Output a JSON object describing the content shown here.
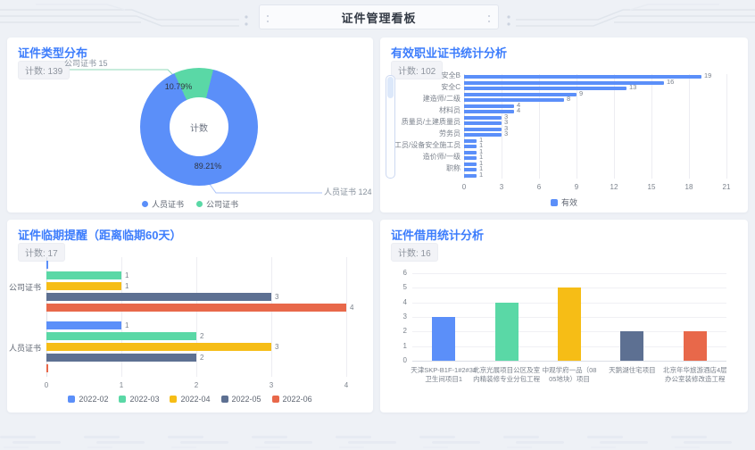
{
  "header": {
    "title": "证件管理看板"
  },
  "panels": {
    "pie": {
      "title": "证件类型分布",
      "badge": "计数: 139"
    },
    "valid": {
      "title": "有效职业证书统计分析",
      "badge": "计数: 102"
    },
    "expiry": {
      "title": "证件临期提醒（距离临期60天）",
      "badge": "计数: 17"
    },
    "borrow": {
      "title": "证件借用统计分析",
      "badge": "计数: 16"
    }
  },
  "chart_data": [
    {
      "id": "cert-type-pie",
      "type": "pie",
      "title": "证件类型分布",
      "center_label": "计数",
      "slices": [
        {
          "name": "人员证书",
          "value": 124,
          "pct": "89.21%",
          "color": "#5B8FF9"
        },
        {
          "name": "公司证书",
          "value": 15,
          "pct": "10.79%",
          "color": "#5AD8A6"
        }
      ],
      "legend": [
        "人员证书",
        "公司证书"
      ],
      "legend_position": "bottom"
    },
    {
      "id": "valid-certs-bar",
      "type": "bar",
      "orientation": "horizontal",
      "title": "有效职业证书统计分析",
      "categories": [
        "安全B",
        "",
        "安全C",
        "",
        "建造师/二级",
        "",
        "材料员",
        "",
        "质量员/土建质量员",
        "",
        "劳务员",
        "",
        "施工员/设备安全施工员",
        "",
        "造价师/一级",
        "",
        "职称",
        ""
      ],
      "values": [
        19,
        16,
        13,
        9,
        8,
        4,
        4,
        3,
        3,
        3,
        3,
        1,
        1,
        1,
        1,
        1,
        1,
        1
      ],
      "series_name": "有效",
      "color": "#5B8FF9",
      "xticks": [
        0,
        3,
        6,
        9,
        12,
        15,
        18,
        21
      ],
      "xlim": [
        0,
        21
      ],
      "legend": [
        "有效"
      ],
      "legend_position": "bottom",
      "scrollbar": "left"
    },
    {
      "id": "expiry-grouped-bar",
      "type": "bar",
      "orientation": "horizontal",
      "title": "证件临期提醒（距离临期60天）",
      "categories": [
        "公司证书",
        "人员证书"
      ],
      "series": [
        {
          "name": "2022-02",
          "color": "#5B8FF9",
          "values": [
            0,
            1
          ]
        },
        {
          "name": "2022-03",
          "color": "#5AD8A6",
          "values": [
            1,
            2
          ]
        },
        {
          "name": "2022-04",
          "color": "#F6BD16",
          "values": [
            1,
            3
          ]
        },
        {
          "name": "2022-05",
          "color": "#5D7092",
          "values": [
            3,
            2
          ]
        },
        {
          "name": "2022-06",
          "color": "#E8684A",
          "values": [
            4,
            0
          ]
        }
      ],
      "xticks": [
        0,
        1,
        2,
        3,
        4
      ],
      "xlim": [
        0,
        4
      ],
      "legend_position": "bottom"
    },
    {
      "id": "borrow-bar",
      "type": "bar",
      "orientation": "vertical",
      "title": "证件借用统计分析",
      "categories": [
        [
          "天津SKP-B1F-1#2#3#",
          "卫生间项目1"
        ],
        [
          "北京光展项目公区及室",
          "内精装修专业分包工程"
        ],
        [
          "中观学府一品（08",
          "05地块）项目"
        ],
        [
          "天鹅湖住宅项目"
        ],
        [
          "北京年华旅游酒店4层",
          "办公室装修改造工程"
        ]
      ],
      "values": [
        3,
        4,
        5,
        2,
        2
      ],
      "colors": [
        "#5B8FF9",
        "#5AD8A6",
        "#F6BD16",
        "#5D7092",
        "#E8684A"
      ],
      "yticks": [
        0,
        1,
        2,
        3,
        4,
        5,
        6
      ],
      "ylim": [
        0,
        6
      ],
      "grid": true
    }
  ]
}
